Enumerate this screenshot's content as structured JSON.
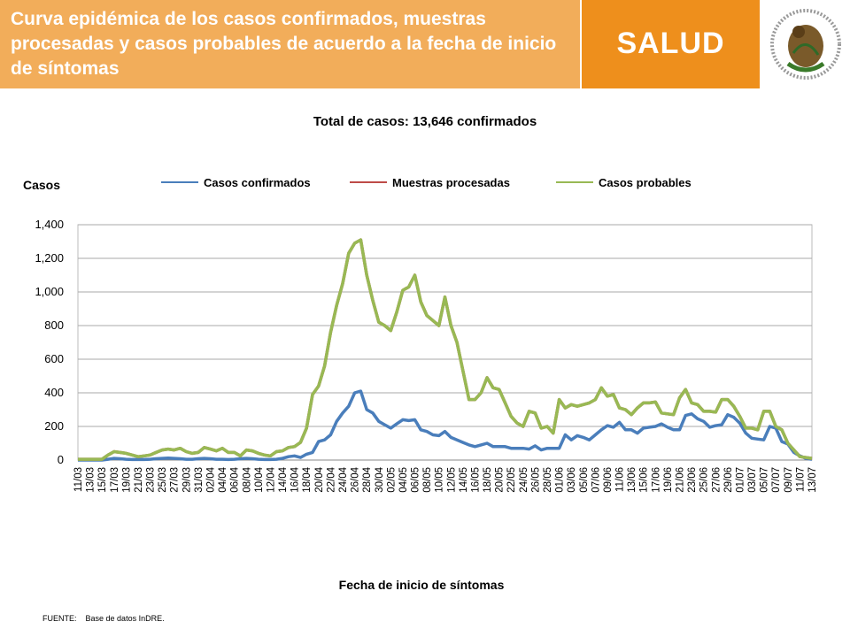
{
  "header": {
    "title": "Curva epidémica de los casos confirmados, muestras procesadas y casos probables de acuerdo a la fecha de inicio de síntomas",
    "brand": "SALUD"
  },
  "chart_data": {
    "type": "line",
    "title": "Total de casos: 13,646 confirmados",
    "y_label": "Casos",
    "x_label": "Fecha de inicio de síntomas",
    "categories": [
      "11/03",
      null,
      "13/03",
      null,
      "15/03",
      null,
      "17/03",
      null,
      "19/03",
      null,
      "21/03",
      null,
      "23/03",
      null,
      "25/03",
      null,
      "27/03",
      null,
      "29/03",
      null,
      "31/03",
      null,
      "02/04",
      null,
      "04/04",
      null,
      "06/04",
      null,
      "08/04",
      null,
      "10/04",
      null,
      "12/04",
      null,
      "14/04",
      null,
      "16/04",
      null,
      "18/04",
      null,
      "20/04",
      null,
      "22/04",
      null,
      "24/04",
      null,
      "26/04",
      null,
      "28/04",
      null,
      "30/04",
      null,
      "02/05",
      null,
      "04/05",
      null,
      "06/05",
      null,
      "08/05",
      null,
      "10/05",
      null,
      "12/05",
      null,
      "14/05",
      null,
      "16/05",
      null,
      "18/05",
      null,
      "20/05",
      null,
      "22/05",
      null,
      "24/05",
      null,
      "26/05",
      null,
      "28/05",
      null,
      "01/06",
      null,
      "03/06",
      null,
      "05/06",
      null,
      "07/06",
      null,
      "09/06",
      null,
      "11/06",
      null,
      "13/06",
      null,
      "15/06",
      null,
      "17/06",
      null,
      "19/06",
      null,
      "21/06",
      null,
      "23/06",
      null,
      "25/06",
      null,
      "27/06",
      null,
      "29/06",
      null,
      "01/07",
      null,
      "03/07",
      null,
      "05/07",
      null,
      "07/07",
      null,
      "09/07",
      null,
      "11/07",
      null,
      "13/07"
    ],
    "series": [
      {
        "name": "Casos confirmados",
        "color": "#4a7ebb",
        "values": [
          0,
          0,
          0,
          0,
          0,
          5,
          10,
          8,
          5,
          3,
          3,
          3,
          5,
          8,
          10,
          12,
          10,
          8,
          5,
          5,
          8,
          10,
          8,
          5,
          5,
          3,
          5,
          8,
          10,
          8,
          5,
          3,
          3,
          5,
          10,
          20,
          25,
          15,
          35,
          45,
          110,
          120,
          150,
          230,
          280,
          320,
          400,
          410,
          300,
          280,
          230,
          210,
          190,
          215,
          240,
          235,
          240,
          180,
          170,
          150,
          145,
          170,
          135,
          120,
          105,
          90,
          80,
          90,
          100,
          80,
          80,
          80,
          70,
          70,
          70,
          65,
          85,
          60,
          70,
          70,
          70,
          150,
          120,
          145,
          135,
          120,
          150,
          180,
          205,
          195,
          225,
          180,
          180,
          160,
          190,
          195,
          200,
          215,
          195,
          180,
          180,
          265,
          275,
          245,
          230,
          195,
          205,
          210,
          270,
          255,
          220,
          160,
          130,
          125,
          120,
          200,
          190,
          110,
          95,
          45,
          25,
          10,
          5
        ]
      },
      {
        "name": "Muestras procesadas",
        "color": "#be4b48",
        "values": [
          5,
          5,
          5,
          5,
          5,
          30,
          50,
          45,
          40,
          30,
          20,
          25,
          30,
          45,
          60,
          65,
          60,
          70,
          50,
          40,
          45,
          75,
          65,
          55,
          70,
          45,
          45,
          25,
          60,
          55,
          40,
          30,
          25,
          50,
          55,
          75,
          80,
          105,
          190,
          390,
          440,
          560,
          760,
          920,
          1050,
          1230,
          1290,
          1310,
          1100,
          950,
          820,
          800,
          770,
          880,
          1010,
          1030,
          1100,
          940,
          860,
          830,
          800,
          970,
          800,
          700,
          530,
          360,
          360,
          400,
          490,
          430,
          420,
          340,
          260,
          220,
          200,
          290,
          280,
          190,
          200,
          160,
          360,
          310,
          330,
          320,
          330,
          340,
          360,
          430,
          380,
          390,
          310,
          300,
          270,
          310,
          340,
          340,
          345,
          280,
          275,
          270,
          370,
          420,
          340,
          330,
          290,
          290,
          285,
          360,
          360,
          320,
          260,
          190,
          190,
          180,
          290,
          290,
          200,
          180,
          100,
          60,
          20,
          15,
          10
        ]
      },
      {
        "name": "Casos probables",
        "color": "#98b954",
        "values": [
          5,
          5,
          5,
          5,
          5,
          30,
          50,
          45,
          40,
          30,
          20,
          25,
          30,
          45,
          60,
          65,
          60,
          70,
          50,
          40,
          45,
          75,
          65,
          55,
          70,
          45,
          45,
          25,
          60,
          55,
          40,
          30,
          25,
          50,
          55,
          75,
          80,
          105,
          190,
          390,
          440,
          560,
          760,
          920,
          1050,
          1230,
          1290,
          1310,
          1100,
          950,
          820,
          800,
          770,
          880,
          1010,
          1030,
          1100,
          940,
          860,
          830,
          800,
          970,
          800,
          700,
          530,
          360,
          360,
          400,
          490,
          430,
          420,
          340,
          260,
          220,
          200,
          290,
          280,
          190,
          200,
          160,
          360,
          310,
          330,
          320,
          330,
          340,
          360,
          430,
          380,
          390,
          310,
          300,
          270,
          310,
          340,
          340,
          345,
          280,
          275,
          270,
          370,
          420,
          340,
          330,
          290,
          290,
          285,
          360,
          360,
          320,
          260,
          190,
          190,
          180,
          290,
          290,
          200,
          180,
          100,
          60,
          20,
          15,
          10
        ]
      }
    ],
    "ylim": [
      0,
      1400
    ],
    "yticks": [
      0,
      200,
      400,
      600,
      800,
      {
        "value": 1000,
        "label": "1,000"
      },
      {
        "value": 1200,
        "label": "1,200"
      },
      {
        "value": 1400,
        "label": "1,400"
      }
    ],
    "grid": true,
    "legend": "top"
  },
  "footer": {
    "source_label": "FUENTE:",
    "source": "Base de datos InDRE."
  }
}
